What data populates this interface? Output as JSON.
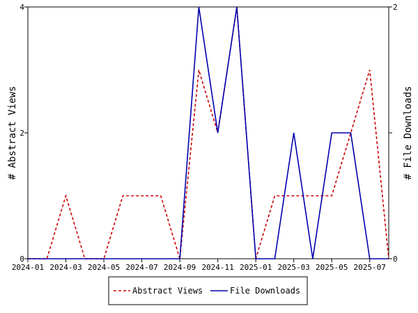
{
  "chart_data": {
    "type": "line",
    "x": [
      "2024-01",
      "2024-02",
      "2024-03",
      "2024-04",
      "2024-05",
      "2024-06",
      "2024-07",
      "2024-08",
      "2024-09",
      "2024-10",
      "2024-11",
      "2024-12",
      "2025-01",
      "2025-02",
      "2025-03",
      "2025-04",
      "2025-05",
      "2025-06",
      "2025-07",
      "2025-08"
    ],
    "x_tick_labels": [
      "2024-01",
      "2024-03",
      "2024-05",
      "2024-07",
      "2024-09",
      "2024-11",
      "2025-01",
      "2025-03",
      "2025-05",
      "2025-07"
    ],
    "series": [
      {
        "name": "Abstract Views",
        "axis": "left",
        "color": "#cc0000",
        "style": "dashed",
        "values": [
          0,
          0,
          1,
          0,
          0,
          1,
          1,
          1,
          0,
          3,
          2,
          4,
          0,
          1,
          1,
          1,
          1,
          2,
          3,
          0
        ]
      },
      {
        "name": "File Downloads",
        "axis": "right",
        "color": "#0000aa",
        "style": "solid",
        "values": [
          0,
          0,
          0,
          0,
          0,
          0,
          0,
          0,
          0,
          2,
          1,
          2,
          0,
          0,
          1,
          0,
          1,
          1,
          0,
          0
        ]
      }
    ],
    "ylabel_left": "# Abstract Views",
    "ylabel_right": "# File Downloads",
    "ylim_left": [
      0,
      4
    ],
    "ylim_right": [
      0,
      2
    ],
    "y_ticks_left": [
      0,
      2,
      4
    ],
    "y_ticks_right": [
      0,
      1,
      2
    ],
    "y_tick_labels_left": [
      "0",
      "2",
      "4"
    ],
    "y_tick_labels_right": [
      "0",
      "",
      "2"
    ],
    "grid": false,
    "legend_position": "bottom"
  }
}
